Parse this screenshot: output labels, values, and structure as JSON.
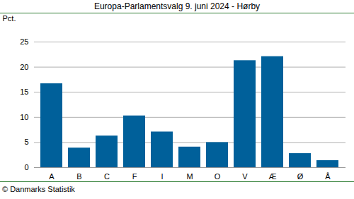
{
  "chart_data": {
    "type": "bar",
    "title": "Europa-Parlamentsvalg 9. juni 2024 - Hørby",
    "y_label": "Pct.",
    "caption": "© Danmarks Statistik",
    "categories": [
      "A",
      "B",
      "C",
      "F",
      "I",
      "M",
      "O",
      "V",
      "Æ",
      "Ø",
      "Å"
    ],
    "values": [
      16.7,
      3.9,
      6.3,
      10.3,
      7.1,
      4.1,
      5.0,
      21.3,
      22.1,
      2.8,
      1.4
    ],
    "color": "#00609a",
    "ylim": [
      0,
      25
    ],
    "yticks": [
      0,
      5,
      10,
      15,
      20,
      25
    ],
    "grid": true
  }
}
